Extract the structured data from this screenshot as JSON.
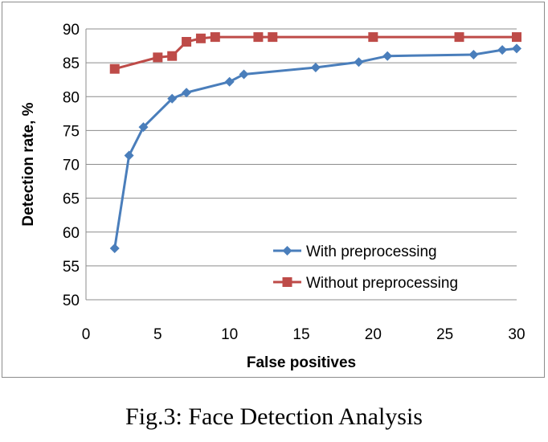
{
  "caption": "Fig.3: Face Detection Analysis",
  "chart_data": {
    "type": "line",
    "xlabel": "False positives",
    "ylabel": "Detection rate, %",
    "xlim": [
      0,
      30
    ],
    "ylim": [
      50,
      90
    ],
    "xticks": [
      0,
      5,
      10,
      15,
      20,
      25,
      30
    ],
    "yticks": [
      50,
      55,
      60,
      65,
      70,
      75,
      80,
      85,
      90
    ],
    "grid": "horizontal",
    "legend_position": "bottom-right",
    "series": [
      {
        "name": "With preprocessing",
        "color": "#4a7ebb",
        "marker": "diamond",
        "x": [
          2,
          3,
          4,
          6,
          7,
          10,
          11,
          16,
          19,
          21,
          27,
          29,
          30
        ],
        "y": [
          57.6,
          71.3,
          75.5,
          79.7,
          80.6,
          82.2,
          83.3,
          84.3,
          85.1,
          86.0,
          86.2,
          86.9,
          87.1
        ]
      },
      {
        "name": "Without preprocessing",
        "color": "#be4b48",
        "marker": "square",
        "x": [
          2,
          5,
          6,
          7,
          8,
          9,
          12,
          13,
          20,
          26,
          30
        ],
        "y": [
          84.1,
          85.8,
          86.0,
          88.1,
          88.6,
          88.8,
          88.8,
          88.8,
          88.8,
          88.8,
          88.8
        ]
      }
    ]
  }
}
